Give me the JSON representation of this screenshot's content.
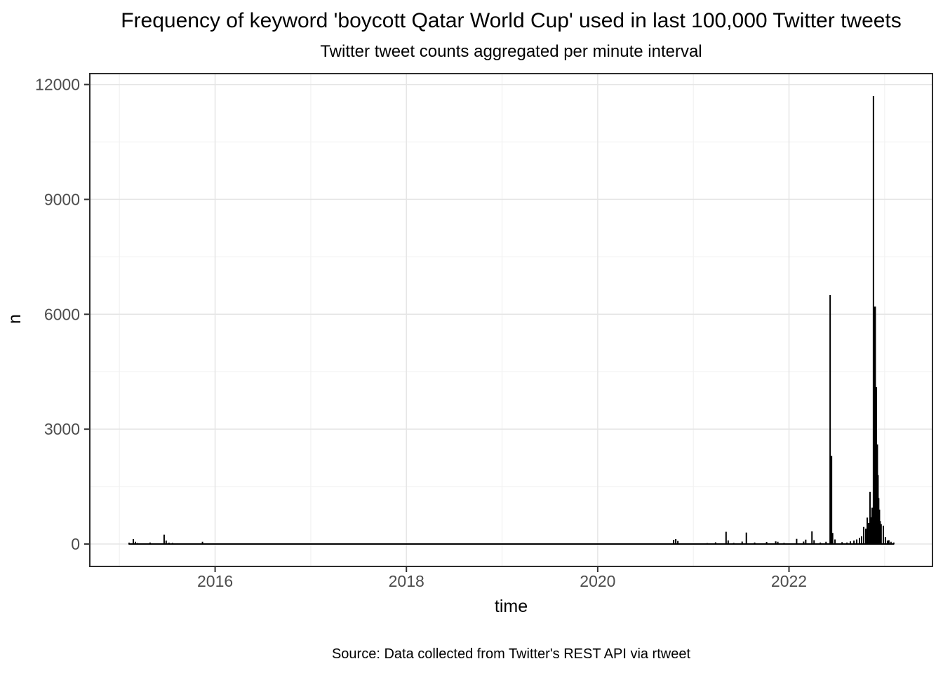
{
  "chart_data": {
    "type": "line",
    "title": "Frequency of keyword 'boycott Qatar World Cup' used in last 100,000 Twitter tweets",
    "subtitle": "Twitter tweet counts aggregated per minute interval",
    "caption": "Source: Data collected from Twitter's REST API via rtweet",
    "xlabel": "time",
    "ylabel": "n",
    "x_domain": [
      2014.69,
      2023.5
    ],
    "y_domain": [
      -585,
      12285
    ],
    "x_major_ticks": [
      {
        "value": 2016,
        "label": "2016"
      },
      {
        "value": 2018,
        "label": "2018"
      },
      {
        "value": 2020,
        "label": "2020"
      },
      {
        "value": 2022,
        "label": "2022"
      }
    ],
    "x_minor_ticks": [
      2015,
      2017,
      2019,
      2021,
      2023
    ],
    "y_major_ticks": [
      {
        "value": 0,
        "label": "0"
      },
      {
        "value": 3000,
        "label": "3000"
      },
      {
        "value": 6000,
        "label": "6000"
      },
      {
        "value": 9000,
        "label": "9000"
      },
      {
        "value": 12000,
        "label": "12000"
      }
    ],
    "y_minor_ticks": [
      1500,
      4500,
      7500,
      10500
    ],
    "grid": true,
    "legend": "none",
    "baseline": {
      "from": 2015.095,
      "to": 2023.1,
      "n": 0
    },
    "spikes": [
      [
        2015.101,
        35
      ],
      [
        2015.145,
        130
      ],
      [
        2015.167,
        60
      ],
      [
        2015.189,
        25
      ],
      [
        2015.32,
        40
      ],
      [
        2015.467,
        245
      ],
      [
        2015.488,
        90
      ],
      [
        2015.518,
        35
      ],
      [
        2015.554,
        30
      ],
      [
        2015.605,
        20
      ],
      [
        2015.868,
        60
      ],
      [
        2016.051,
        15
      ],
      [
        2016.256,
        15
      ],
      [
        2016.453,
        12
      ],
      [
        2016.833,
        10
      ],
      [
        2020.794,
        110
      ],
      [
        2020.816,
        130
      ],
      [
        2020.838,
        80
      ],
      [
        2021.145,
        25
      ],
      [
        2021.232,
        45
      ],
      [
        2021.342,
        320
      ],
      [
        2021.364,
        95
      ],
      [
        2021.422,
        30
      ],
      [
        2021.51,
        65
      ],
      [
        2021.554,
        300
      ],
      [
        2021.641,
        40
      ],
      [
        2021.766,
        55
      ],
      [
        2021.861,
        70
      ],
      [
        2021.883,
        60
      ],
      [
        2021.948,
        30
      ],
      [
        2022.08,
        135
      ],
      [
        2022.153,
        65
      ],
      [
        2022.175,
        115
      ],
      [
        2022.24,
        330
      ],
      [
        2022.262,
        100
      ],
      [
        2022.328,
        40
      ],
      [
        2022.387,
        60
      ],
      [
        2022.43,
        6500
      ],
      [
        2022.441,
        2300,
        3
      ],
      [
        2022.456,
        290
      ],
      [
        2022.481,
        120
      ],
      [
        2022.555,
        50
      ],
      [
        2022.606,
        40
      ],
      [
        2022.642,
        70
      ],
      [
        2022.679,
        90
      ],
      [
        2022.708,
        120
      ],
      [
        2022.737,
        160
      ],
      [
        2022.759,
        200
      ],
      [
        2022.781,
        445
      ],
      [
        2022.803,
        400
      ],
      [
        2022.818,
        690
      ],
      [
        2022.832,
        550
      ],
      [
        2022.847,
        1360
      ],
      [
        2022.862,
        700,
        3
      ],
      [
        2022.872,
        950,
        3
      ],
      [
        2022.883,
        11700
      ],
      [
        2022.898,
        6200,
        3
      ],
      [
        2022.909,
        4100,
        3
      ],
      [
        2022.92,
        2600,
        3
      ],
      [
        2022.927,
        1800,
        3
      ],
      [
        2022.934,
        1200,
        3
      ],
      [
        2022.942,
        900,
        3
      ],
      [
        2022.953,
        600
      ],
      [
        2022.963,
        520
      ],
      [
        2022.986,
        480
      ],
      [
        2023.008,
        180
      ],
      [
        2023.03,
        90
      ],
      [
        2023.044,
        100
      ],
      [
        2023.066,
        60
      ],
      [
        2023.095,
        40
      ]
    ],
    "colors": {
      "series": "#000000",
      "grid_major": "#e5e5e5",
      "grid_minor": "#f2f2f2",
      "panel_border": "#2d2d2d",
      "tick_mark": "#333333",
      "tick_label": "#4d4d4d",
      "text": "#000000"
    }
  }
}
